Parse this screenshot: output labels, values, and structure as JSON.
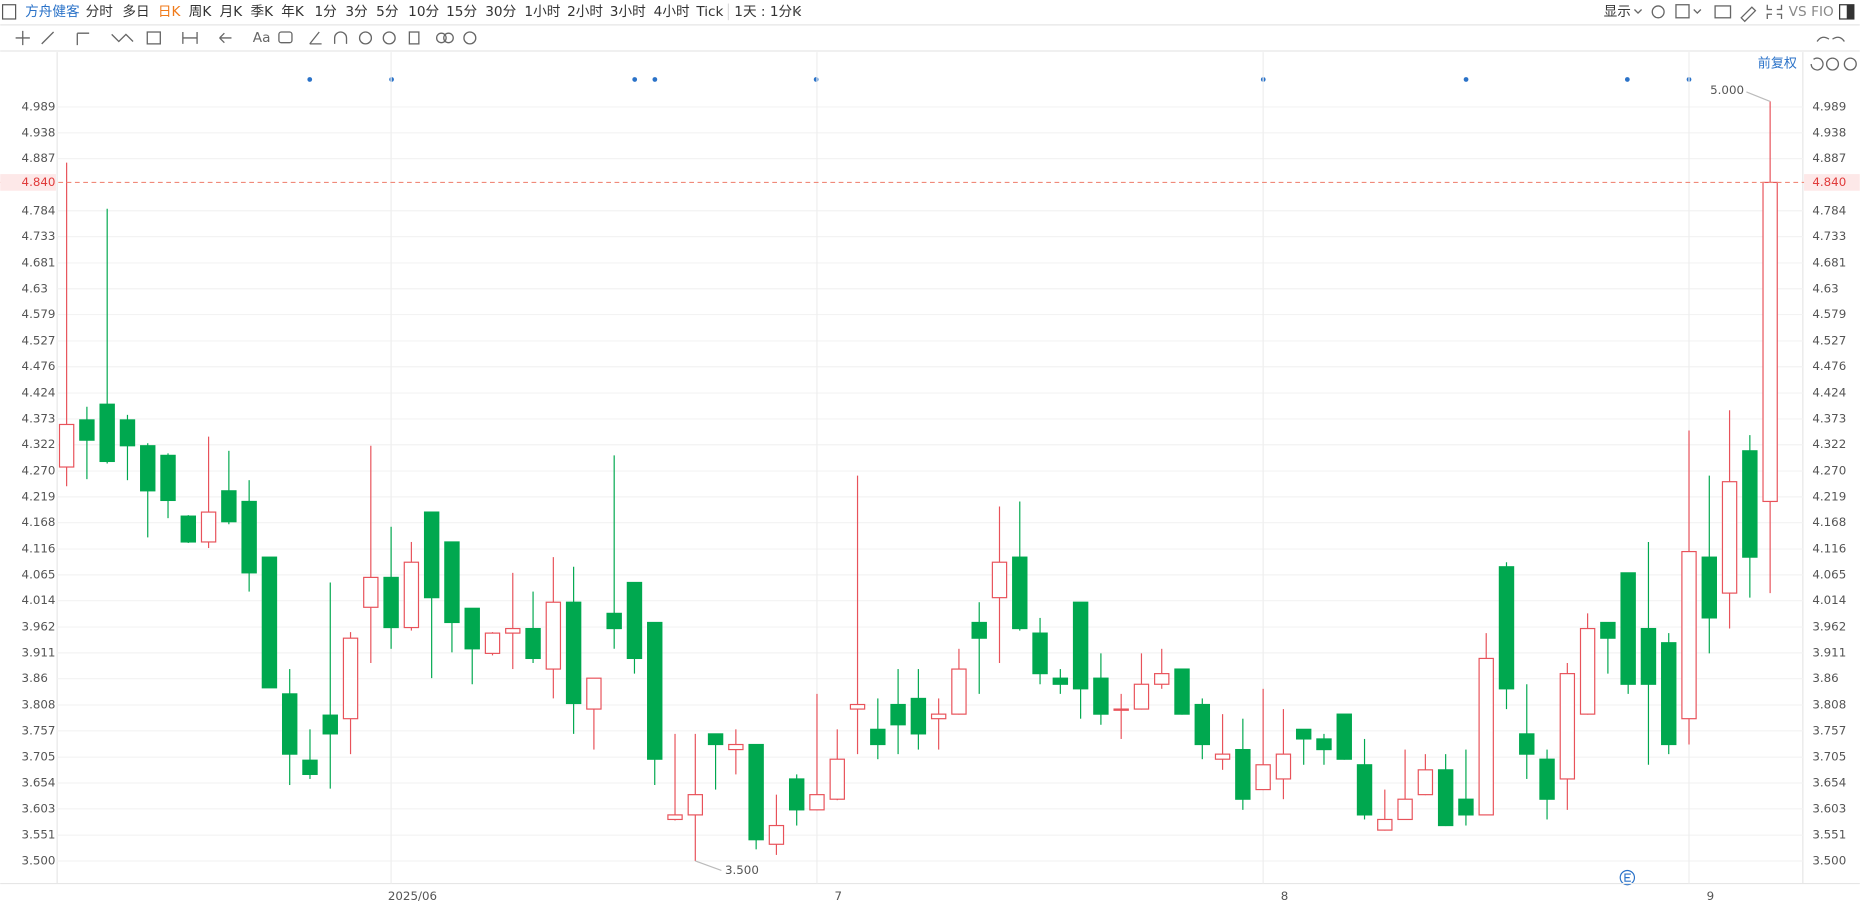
{
  "toolbar": {
    "app": "方舟健客",
    "periods": [
      "分时",
      "多日",
      "日K",
      "周K",
      "月K",
      "季K",
      "年K",
      "1分",
      "3分",
      "5分",
      "10分",
      "15分",
      "30分",
      "1小时",
      "2小时",
      "3小时",
      "4小时",
      "Tick"
    ],
    "interval": "1天 : 1分K",
    "display": "显示",
    "vs": "VS",
    "fio": "FIO",
    "font_tool": "Aa"
  },
  "chart_data": {
    "type": "candlestick",
    "adjust_label": "前复权",
    "up_color": "#e8525a",
    "down_color": "#00a84f",
    "grid": true,
    "categories": [
      null,
      null,
      null,
      null,
      null,
      null,
      null,
      null,
      null,
      null,
      null,
      null,
      null,
      null,
      null,
      null,
      "2025/06",
      null,
      null,
      null,
      null,
      null,
      null,
      null,
      null,
      null,
      null,
      null,
      null,
      null,
      null,
      null,
      null,
      null,
      null,
      null,
      null,
      "7",
      null,
      null,
      null,
      null,
      null,
      null,
      null,
      null,
      null,
      null,
      null,
      null,
      null,
      null,
      null,
      null,
      null,
      null,
      null,
      null,
      null,
      "8",
      null,
      null,
      null,
      null,
      null,
      null,
      null,
      null,
      null,
      null,
      null,
      null,
      null,
      null,
      null,
      null,
      null,
      null,
      null,
      null,
      "9",
      null,
      null,
      null,
      null
    ],
    "open": [
      4.278,
      4.371,
      4.402,
      4.371,
      4.32,
      4.301,
      4.181,
      4.13,
      4.231,
      4.21,
      4.1,
      3.83,
      3.699,
      3.788,
      3.781,
      4.001,
      4.06,
      3.961,
      4.189,
      4.13,
      3.999,
      3.91,
      3.95,
      3.959,
      3.879,
      4.011,
      3.8,
      3.989,
      4.05,
      3.971,
      3.582,
      3.591,
      3.751,
      3.72,
      3.73,
      3.533,
      3.662,
      3.601,
      3.622,
      3.8,
      3.76,
      3.809,
      3.821,
      3.781,
      3.79,
      3.971,
      4.02,
      4.1,
      3.95,
      3.861,
      4.011,
      3.861,
      3.798,
      3.8,
      3.849,
      3.879,
      3.809,
      3.701,
      3.72,
      3.641,
      3.662,
      3.76,
      3.741,
      3.79,
      3.69,
      3.561,
      3.582,
      3.631,
      3.68,
      3.622,
      3.591,
      4.081,
      3.751,
      3.701,
      3.662,
      3.79,
      3.971,
      4.069,
      3.959,
      3.931,
      3.781,
      4.1,
      4.029,
      4.31,
      4.21
    ],
    "high": [
      4.879,
      4.397,
      4.788,
      4.381,
      4.325,
      4.305,
      4.183,
      4.338,
      4.31,
      4.252,
      4.1,
      3.879,
      3.76,
      4.05,
      3.952,
      4.32,
      4.16,
      4.13,
      4.189,
      4.13,
      3.999,
      3.952,
      4.069,
      4.032,
      4.1,
      4.081,
      3.861,
      4.301,
      4.05,
      3.971,
      3.751,
      3.751,
      3.751,
      3.76,
      3.73,
      3.631,
      3.671,
      3.83,
      3.76,
      4.261,
      3.821,
      3.879,
      3.879,
      3.821,
      3.919,
      4.011,
      4.2,
      4.21,
      3.98,
      3.879,
      4.011,
      3.91,
      3.83,
      3.91,
      3.919,
      3.88,
      3.821,
      3.79,
      3.781,
      3.84,
      3.8,
      3.76,
      3.751,
      3.79,
      3.741,
      3.641,
      3.72,
      3.711,
      3.711,
      3.72,
      3.95,
      4.09,
      3.849,
      3.72,
      3.891,
      3.989,
      3.971,
      4.069,
      4.13,
      3.95,
      4.35,
      4.261,
      4.39,
      4.341,
      5.0
    ],
    "low": [
      4.24,
      4.254,
      4.285,
      4.252,
      4.139,
      4.177,
      4.128,
      4.118,
      4.165,
      4.032,
      3.842,
      3.65,
      3.662,
      3.643,
      3.711,
      3.891,
      3.919,
      3.955,
      3.861,
      3.912,
      3.849,
      3.906,
      3.879,
      3.891,
      3.821,
      3.751,
      3.72,
      3.919,
      3.87,
      3.65,
      3.58,
      3.5,
      3.641,
      3.671,
      3.523,
      3.512,
      3.57,
      3.6,
      3.62,
      3.711,
      3.701,
      3.711,
      3.72,
      3.72,
      3.789,
      3.83,
      3.891,
      3.955,
      3.849,
      3.83,
      3.781,
      3.769,
      3.741,
      3.799,
      3.84,
      3.789,
      3.701,
      3.68,
      3.601,
      3.64,
      3.622,
      3.69,
      3.69,
      3.7,
      3.582,
      3.56,
      3.581,
      3.63,
      3.569,
      3.57,
      3.59,
      3.8,
      3.662,
      3.582,
      3.601,
      3.789,
      3.87,
      3.83,
      3.69,
      3.711,
      3.73,
      3.91,
      3.959,
      4.02,
      4.029
    ],
    "close": [
      4.362,
      4.331,
      4.289,
      4.32,
      4.231,
      4.212,
      4.13,
      4.189,
      4.17,
      4.069,
      3.842,
      3.711,
      3.671,
      3.751,
      3.94,
      4.06,
      3.961,
      4.09,
      4.02,
      3.971,
      3.919,
      3.95,
      3.959,
      3.9,
      4.011,
      3.811,
      3.861,
      3.959,
      3.9,
      3.701,
      3.591,
      3.631,
      3.73,
      3.73,
      3.542,
      3.57,
      3.601,
      3.631,
      3.701,
      3.809,
      3.73,
      3.769,
      3.751,
      3.79,
      3.879,
      3.94,
      4.09,
      3.959,
      3.87,
      3.849,
      3.84,
      3.79,
      3.8,
      3.849,
      3.87,
      3.79,
      3.73,
      3.711,
      3.622,
      3.69,
      3.711,
      3.741,
      3.72,
      3.701,
      3.591,
      3.582,
      3.622,
      3.68,
      3.57,
      3.591,
      3.9,
      3.84,
      3.711,
      3.622,
      3.87,
      3.959,
      3.94,
      3.849,
      3.849,
      3.73,
      4.111,
      3.98,
      4.249,
      4.1,
      4.84
    ],
    "ylim": [
      3.455,
      5.1
    ],
    "yticks": [
      {
        "value": 3.5,
        "label": "3.500"
      },
      3.551,
      3.603,
      3.654,
      3.705,
      3.757,
      3.808,
      3.86,
      3.911,
      3.962,
      4.014,
      4.065,
      4.116,
      4.168,
      4.219,
      {
        "value": 4.27,
        "label": "4.270"
      },
      4.322,
      4.373,
      4.424,
      4.476,
      4.527,
      4.579,
      4.63,
      4.681,
      4.733,
      4.784,
      4.887,
      4.938,
      4.989
    ],
    "last_price": {
      "value": 4.84,
      "label": "4.840"
    },
    "high_annotation": {
      "value": 5.0,
      "label": "5.000"
    },
    "low_annotation": {
      "value": 3.5,
      "label": "3.500"
    }
  }
}
